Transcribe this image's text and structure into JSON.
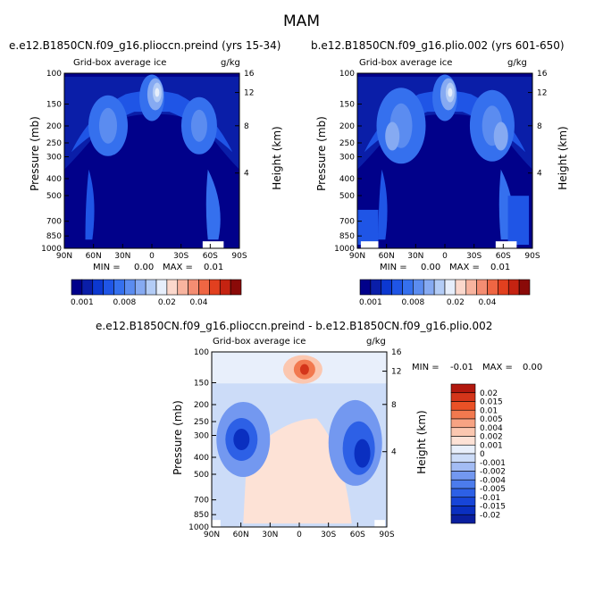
{
  "page_title": "MAM",
  "colors": {
    "background": "#ffffff",
    "ice_scale": [
      "#01018a",
      "#0a1ea8",
      "#0c38d0",
      "#1f55e6",
      "#3570ee",
      "#5b8cf0",
      "#86aaf2",
      "#b3ccf6",
      "#e6eefb",
      "#fbd8cc",
      "#f8b49f",
      "#f48d72",
      "#ef6643",
      "#e2401f",
      "#c52311",
      "#8a0a08"
    ],
    "diff_scale": [
      "#0a1e9e",
      "#0a2fc0",
      "#1745d8",
      "#2d60e6",
      "#4c7cec",
      "#7398f0",
      "#a3bcf4",
      "#ccdcf8",
      "#e8effb",
      "#fde2d6",
      "#fbc7b0",
      "#f7a383",
      "#f2794f",
      "#ea5126",
      "#d4351a",
      "#b2180e"
    ]
  },
  "chart_data": [
    {
      "type": "heatmap",
      "title": "e.e12.B1850CN.f09_g16.plioccn.preind (yrs 15-34)",
      "subtitle_left": "Grid-box average ice",
      "units": "g/kg",
      "ylabel": "Pressure (mb)",
      "y2label": "Height (km)",
      "x_ticks": [
        "90N",
        "60N",
        "30N",
        "0",
        "30S",
        "60S",
        "90S"
      ],
      "y_ticks": [
        "100",
        "150",
        "200",
        "250",
        "300",
        "400",
        "500",
        "700",
        "850",
        "1000"
      ],
      "y2_ticks": [
        "16",
        "12",
        "8",
        "4"
      ],
      "stats": {
        "min_label": "MIN =",
        "min": "0.00",
        "max_label": "MAX =",
        "max": "0.01"
      },
      "colorbar_labels": [
        "0.001",
        "0.008",
        "0.02",
        "0.04"
      ]
    },
    {
      "type": "heatmap",
      "title": "b.e12.B1850CN.f09_g16.plio.002 (yrs 601-650)",
      "subtitle_left": "Grid-box average ice",
      "units": "g/kg",
      "ylabel": "Pressure (mb)",
      "y2label": "Height (km)",
      "x_ticks": [
        "90N",
        "60N",
        "30N",
        "0",
        "30S",
        "60S",
        "90S"
      ],
      "y_ticks": [
        "100",
        "150",
        "200",
        "250",
        "300",
        "400",
        "500",
        "700",
        "850",
        "1000"
      ],
      "y2_ticks": [
        "16",
        "12",
        "8",
        "4"
      ],
      "stats": {
        "min_label": "MIN =",
        "min": "0.00",
        "max_label": "MAX =",
        "max": "0.01"
      },
      "colorbar_labels": [
        "0.001",
        "0.008",
        "0.02",
        "0.04"
      ]
    },
    {
      "type": "heatmap",
      "title": "e.e12.B1850CN.f09_g16.plioccn.preind - b.e12.B1850CN.f09_g16.plio.002",
      "subtitle_left": "Grid-box average ice",
      "units": "g/kg",
      "ylabel": "Pressure (mb)",
      "y2label": "Height (km)",
      "x_ticks": [
        "90N",
        "60N",
        "30N",
        "0",
        "30S",
        "60S",
        "90S"
      ],
      "y_ticks": [
        "100",
        "150",
        "200",
        "250",
        "300",
        "400",
        "500",
        "700",
        "850",
        "1000"
      ],
      "y2_ticks": [
        "16",
        "12",
        "8",
        "4"
      ],
      "stats": {
        "min_label": "MIN =",
        "min": "-0.01",
        "max_label": "MAX =",
        "max": "0.00"
      },
      "colorbar_labels": [
        "0.02",
        "0.015",
        "0.01",
        "0.005",
        "0.004",
        "0.002",
        "0.001",
        "0",
        "-0.001",
        "-0.002",
        "-0.004",
        "-0.005",
        "-0.01",
        "-0.015",
        "-0.02"
      ]
    }
  ]
}
